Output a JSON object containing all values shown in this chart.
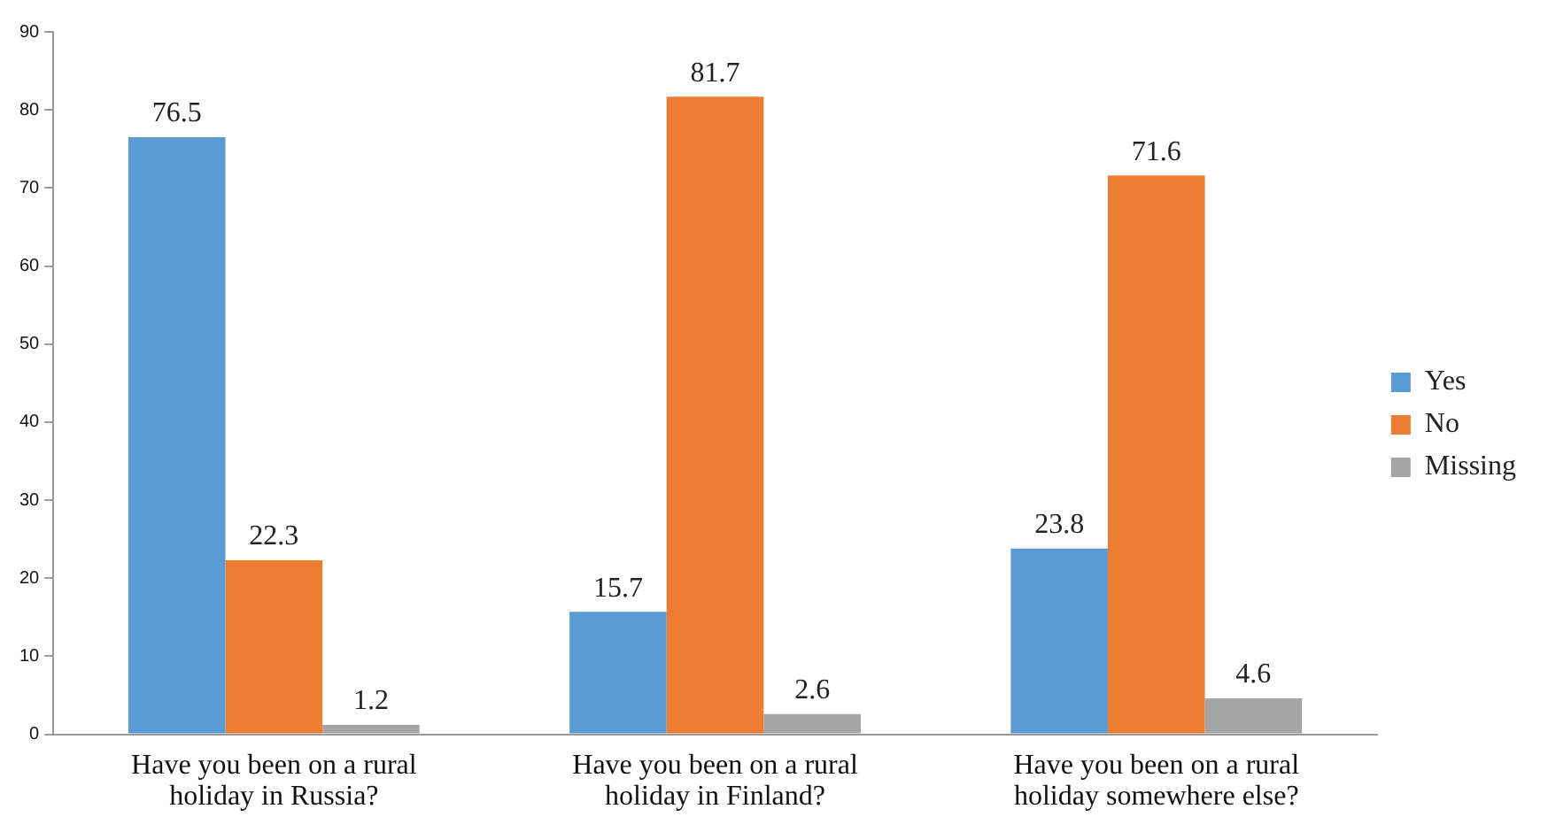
{
  "chart_data": {
    "type": "bar",
    "categories": [
      "Have you been on a rural holiday in Russia?",
      "Have you been on a rural holiday in Finland?",
      "Have you been on a rural holiday somewhere else?"
    ],
    "series": [
      {
        "name": "Yes",
        "color": "#5b9bd5",
        "values": [
          76.5,
          15.7,
          23.8
        ]
      },
      {
        "name": "No",
        "color": "#ed7d31",
        "values": [
          22.3,
          81.7,
          71.6
        ]
      },
      {
        "name": "Missing",
        "color": "#a5a5a5",
        "values": [
          1.2,
          2.6,
          4.6
        ]
      }
    ],
    "ylim": [
      0,
      90
    ],
    "yticks": [
      0,
      10,
      20,
      30,
      40,
      50,
      60,
      70,
      80,
      90
    ],
    "grid": false,
    "legend": "right",
    "data_labels": true
  }
}
